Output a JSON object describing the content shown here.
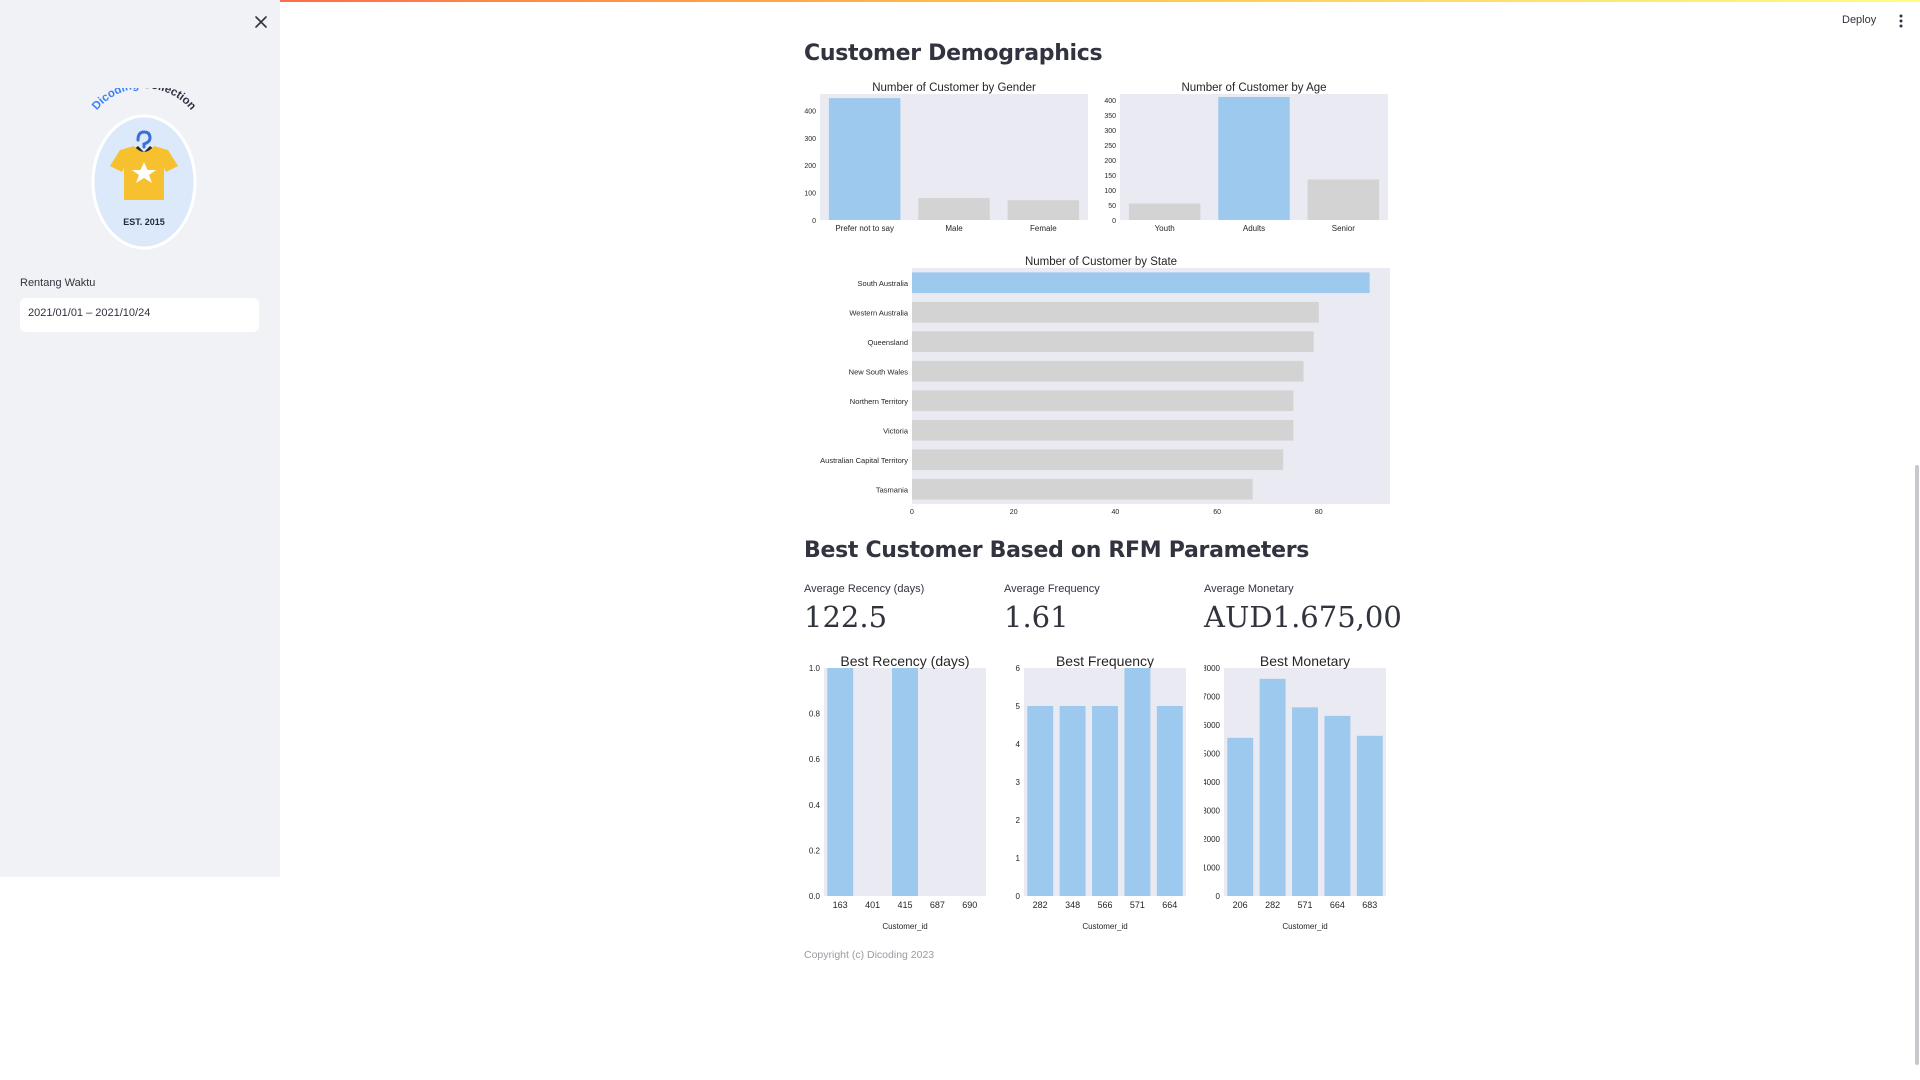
{
  "toolbar": {
    "deploy_label": "Deploy",
    "menu_icon": "more-vertical-icon",
    "close_icon": "close-icon"
  },
  "sidebar": {
    "logo": {
      "top_text": "Dicoding Collection",
      "est_text": "EST. 2015"
    },
    "date_label": "Rentang Waktu",
    "date_value": "2021/01/01 – 2021/10/24"
  },
  "demographics": {
    "title": "Customer Demographics"
  },
  "rfm": {
    "title": "Best Customer Based on RFM Parameters",
    "metrics": [
      {
        "label": "Average Recency (days)",
        "value": "122.5"
      },
      {
        "label": "Average Frequency",
        "value": "1.61"
      },
      {
        "label": "Average Monetary",
        "value": "AUD1.675,00"
      }
    ]
  },
  "footer": "Copyright (c) Dicoding 2023",
  "colors": {
    "highlight": "#9ec9ee",
    "muted": "#d3d3d3",
    "plot_bg": "#eaeaf2",
    "sidebar": "#f0f2f6"
  },
  "chart_data": [
    {
      "id": "gender",
      "type": "bar",
      "title": "Number of Customer by Gender",
      "categories": [
        "Prefer not to say",
        "Male",
        "Female"
      ],
      "values": [
        445,
        80,
        72
      ],
      "ylim": [
        0,
        460
      ],
      "yticks": [
        0,
        100,
        200,
        300,
        400
      ],
      "highlight": [
        0
      ]
    },
    {
      "id": "age",
      "type": "bar",
      "title": "Number of Customer by Age",
      "categories": [
        "Youth",
        "Adults",
        "Senior"
      ],
      "values": [
        55,
        410,
        135
      ],
      "ylim": [
        0,
        420
      ],
      "yticks": [
        0,
        50,
        100,
        150,
        200,
        250,
        300,
        350,
        400
      ],
      "highlight": [
        1
      ]
    },
    {
      "id": "state",
      "type": "bar",
      "orientation": "horizontal",
      "title": "Number of Customer by State",
      "categories": [
        "South Australia",
        "Western Australia",
        "Queensland",
        "New South Wales",
        "Northern Territory",
        "Victoria",
        "Australian Capital Territory",
        "Tasmania"
      ],
      "values": [
        90,
        80,
        79,
        77,
        75,
        75,
        73,
        67
      ],
      "xlim": [
        0,
        94
      ],
      "xticks": [
        0,
        20,
        40,
        60,
        80
      ],
      "highlight": [
        0
      ]
    },
    {
      "id": "recency",
      "type": "bar",
      "title": "Best Recency (days)",
      "xlabel": "Customer_id",
      "categories": [
        "163",
        "401",
        "415",
        "687",
        "690"
      ],
      "values": [
        1,
        0,
        1,
        0,
        0
      ],
      "ylim": [
        0,
        1.0
      ],
      "yticks": [
        0.0,
        0.2,
        0.4,
        0.6,
        0.8,
        1.0
      ],
      "ytick_format": "fixed1",
      "highlight": "all"
    },
    {
      "id": "frequency",
      "type": "bar",
      "title": "Best Frequency",
      "xlabel": "Customer_id",
      "categories": [
        "282",
        "348",
        "566",
        "571",
        "664"
      ],
      "values": [
        5,
        5,
        5,
        6,
        5
      ],
      "ylim": [
        0,
        6
      ],
      "yticks": [
        0,
        1,
        2,
        3,
        4,
        5,
        6
      ],
      "highlight": "all"
    },
    {
      "id": "monetary",
      "type": "bar",
      "title": "Best Monetary",
      "xlabel": "Customer_id",
      "categories": [
        "206",
        "282",
        "571",
        "664",
        "683"
      ],
      "values": [
        5550,
        7620,
        6620,
        6320,
        5620
      ],
      "ylim": [
        0,
        8000
      ],
      "yticks": [
        0,
        1000,
        2000,
        3000,
        4000,
        5000,
        6000,
        7000,
        8000
      ],
      "highlight": "all"
    }
  ]
}
